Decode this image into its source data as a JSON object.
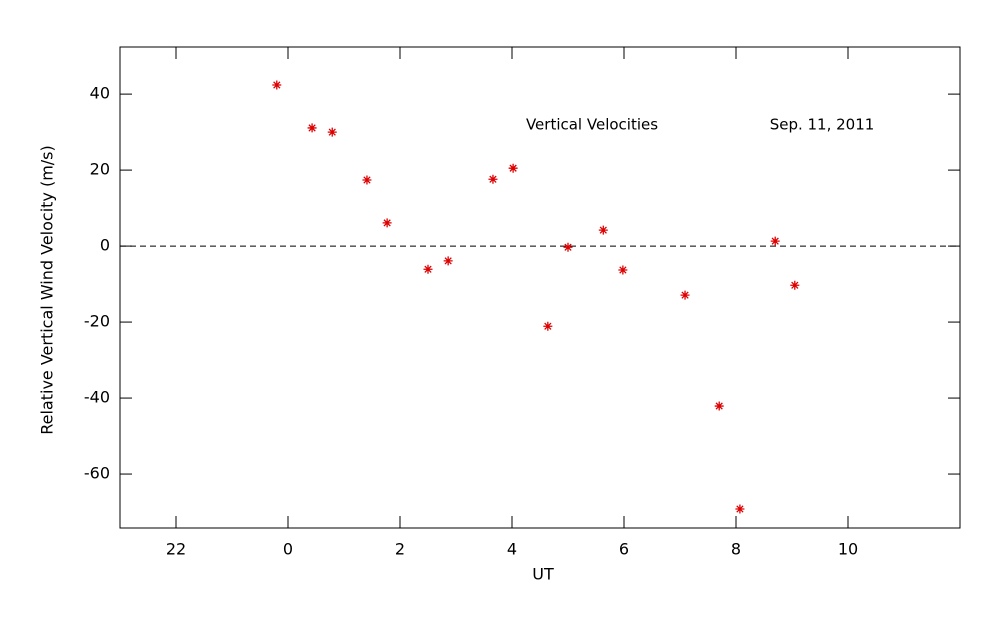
{
  "chart_data": {
    "type": "scatter",
    "xlabel": "UT",
    "ylabel": "Relative Vertical Wind Velocity (m/s)",
    "annotations": [
      "Vertical Velocities",
      "Sep. 11, 2011"
    ],
    "x": [
      23.8,
      24.43,
      24.79,
      25.41,
      25.77,
      26.5,
      26.86,
      27.66,
      28.02,
      28.64,
      29.0,
      29.63,
      29.98,
      31.09,
      31.7,
      32.07,
      32.7,
      33.05
    ],
    "values": [
      42.4,
      31.1,
      30.0,
      17.4,
      6.1,
      -6.1,
      -3.9,
      17.6,
      20.5,
      -21.1,
      -0.3,
      4.2,
      -6.3,
      -12.9,
      -42.1,
      -69.2,
      1.3,
      -10.3
    ],
    "color": "#dd0000",
    "reference_line": 0,
    "xlim": [
      21,
      36
    ],
    "xticks": [
      22,
      {
        "value": 24,
        "label": "0"
      },
      {
        "value": 26,
        "label": "2"
      },
      {
        "value": 28,
        "label": "4"
      },
      {
        "value": 30,
        "label": "6"
      },
      {
        "value": 32,
        "label": "8"
      },
      {
        "value": 34,
        "label": "10"
      }
    ],
    "ylim": [
      -74.2,
      52.4
    ],
    "yticks": [
      -60,
      -40,
      -20,
      0,
      20,
      40
    ]
  }
}
